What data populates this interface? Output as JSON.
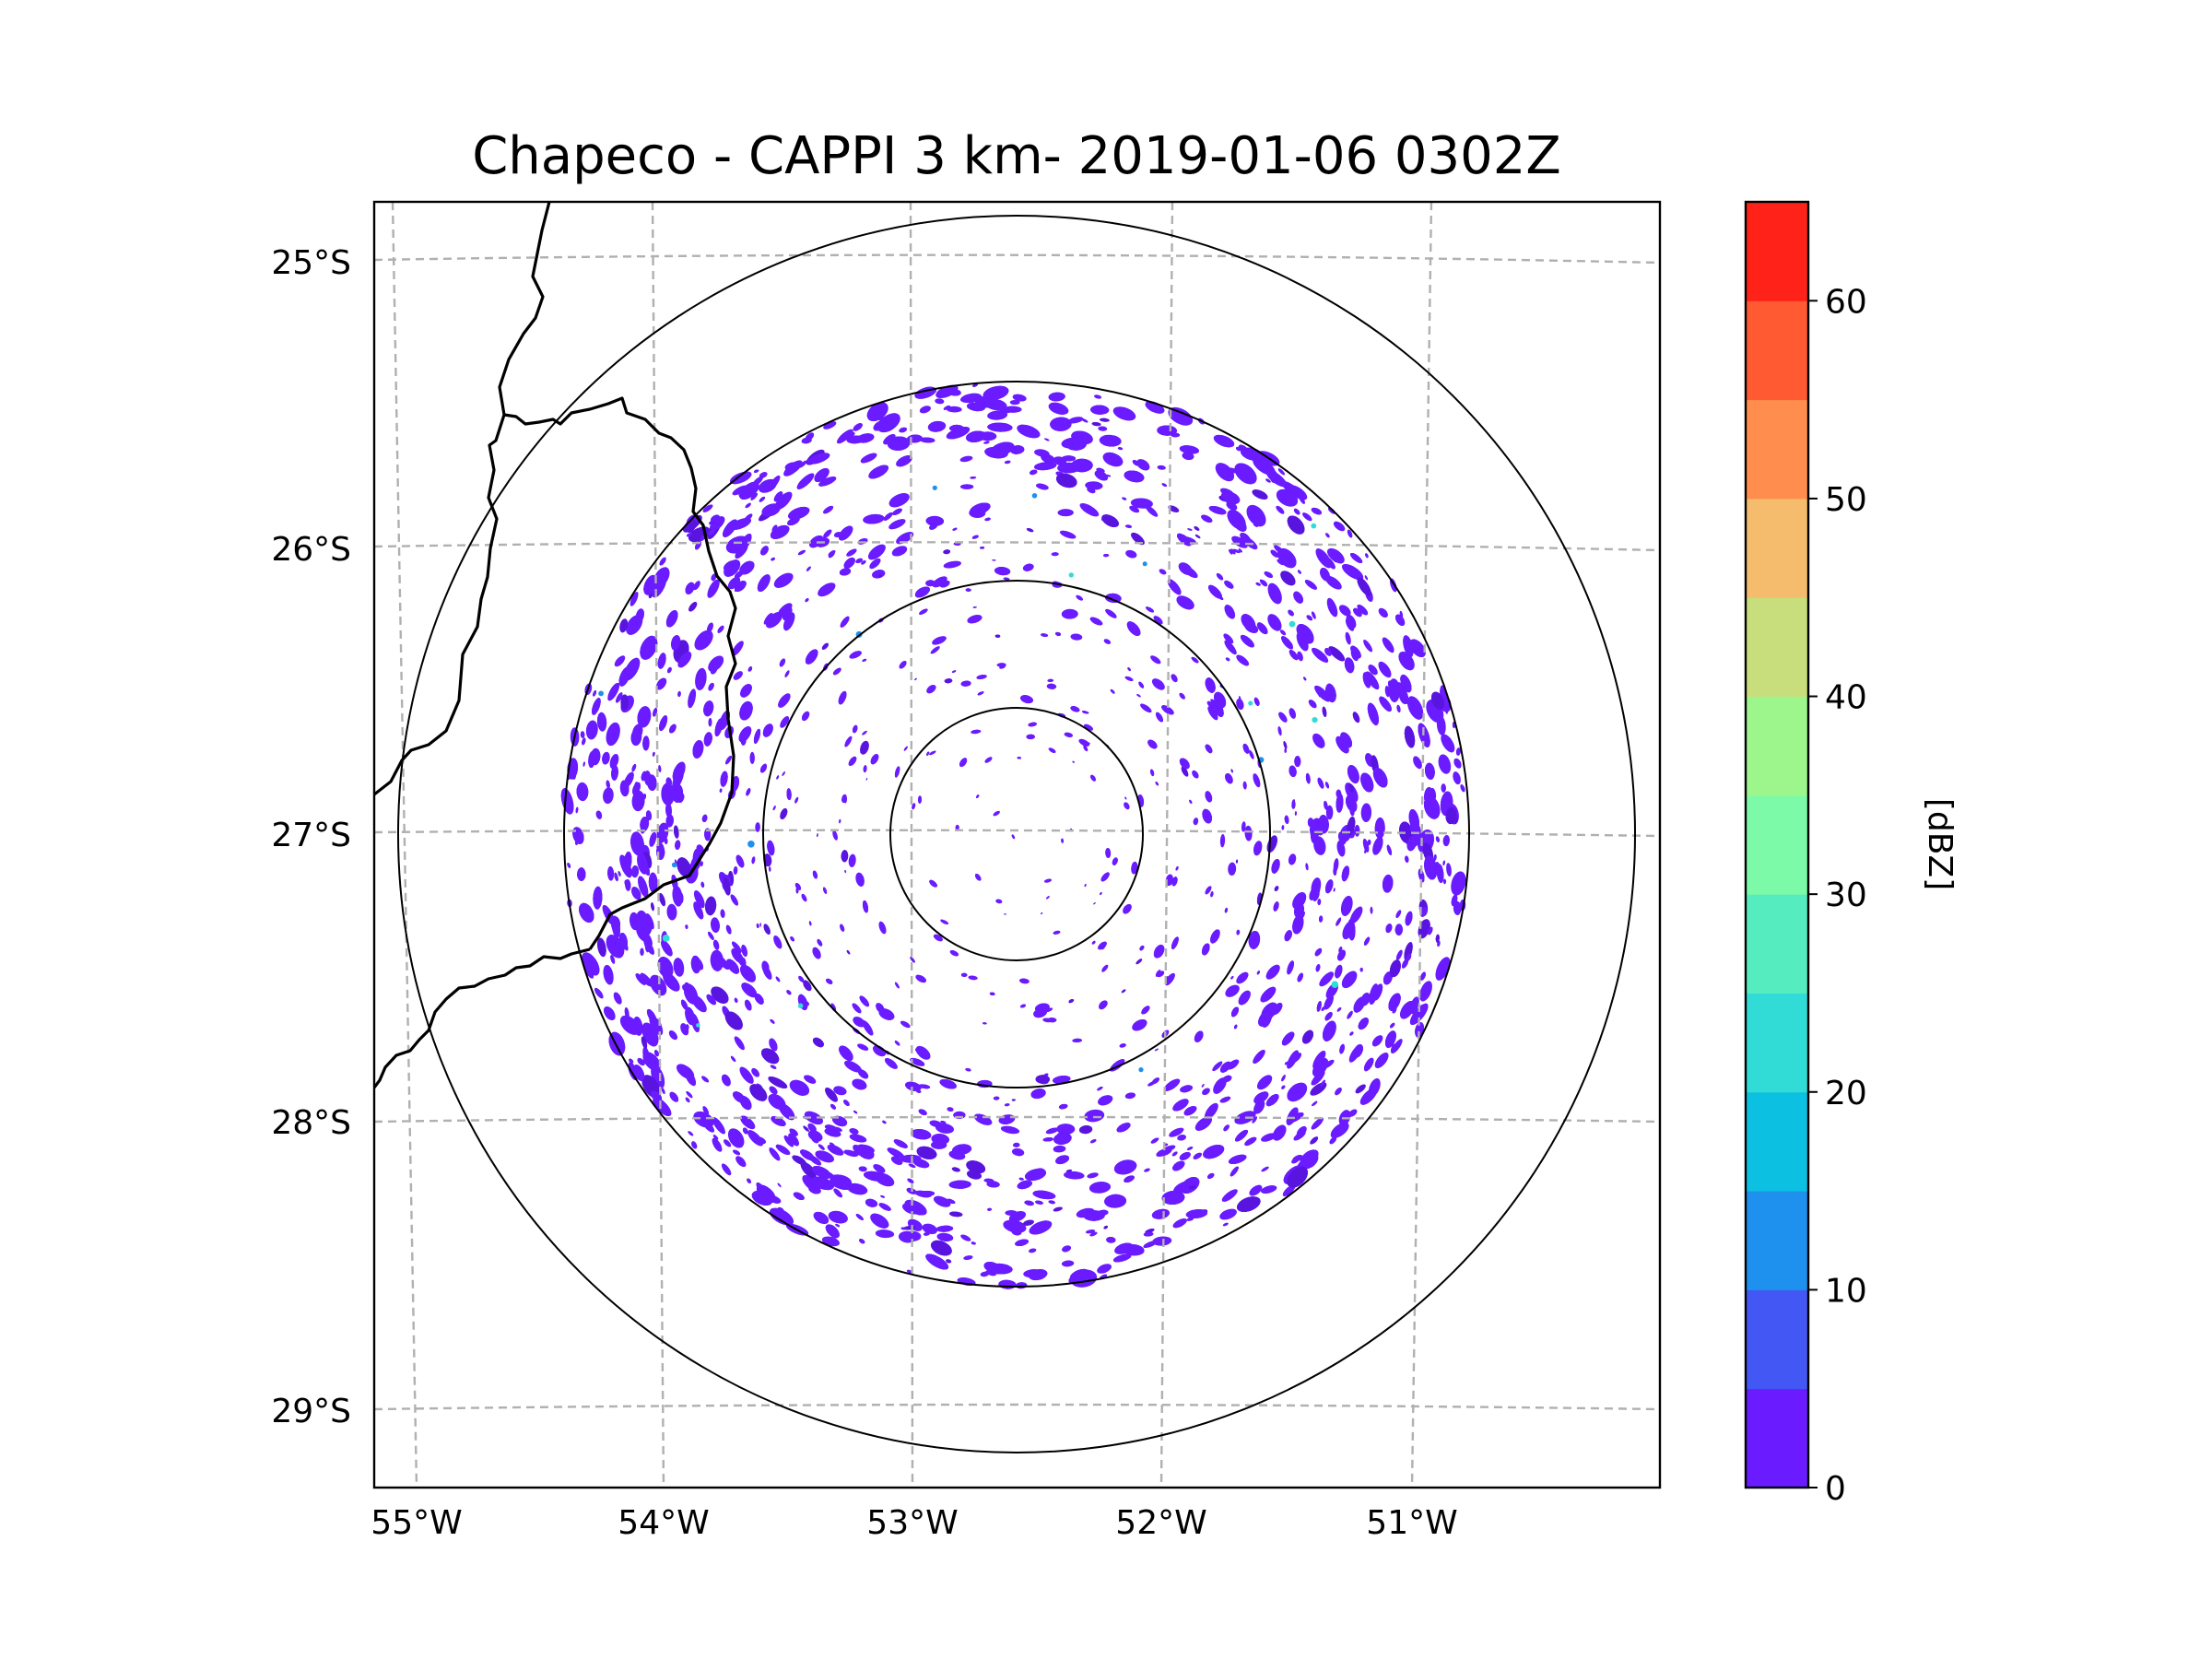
{
  "title": "Chapeco - CAPPI 3 km- 2019-01-06 0302Z",
  "map": {
    "lat_labels": [
      "25°S",
      "26°S",
      "27°S",
      "28°S",
      "29°S"
    ],
    "lon_labels": [
      "55°W",
      "54°W",
      "53°W",
      "52°W",
      "51°W"
    ],
    "radar_site": {
      "name": "Chapeco",
      "lon": -52.6,
      "lat": -27.0
    },
    "range_rings_label": "range rings",
    "reflectivity_dbz_min": 0
  },
  "colorbar": {
    "label": "[dBZ]",
    "tick_labels": [
      "0",
      "10",
      "20",
      "30",
      "40",
      "50",
      "60"
    ],
    "levels": [
      0,
      5,
      10,
      15,
      20,
      25,
      30,
      35,
      40,
      45,
      50,
      55,
      60,
      65
    ],
    "colors": [
      "#6a1bff",
      "#4357f5",
      "#1e90ee",
      "#0cc0e2",
      "#32dcd6",
      "#55ecc0",
      "#7dfaa8",
      "#9cf68c",
      "#c8de7c",
      "#f4bc6c",
      "#ff8e4e",
      "#ff5a32",
      "#ff2218"
    ]
  },
  "colors": {
    "echo": "#6a1bff",
    "echo_dark": "#5a14e0",
    "grid": "#b0b0b0",
    "border": "#000000"
  }
}
